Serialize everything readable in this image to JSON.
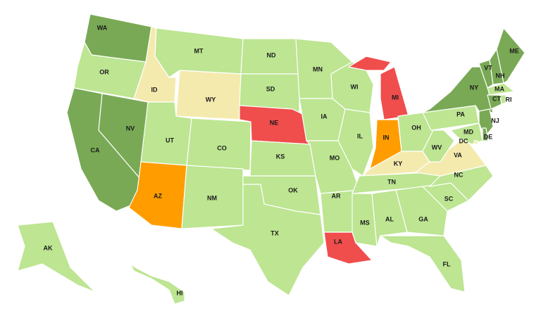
{
  "map": {
    "states": [
      {
        "code": "WA",
        "color": "#79a955"
      },
      {
        "code": "OR",
        "color": "#bde592"
      },
      {
        "code": "CA",
        "color": "#79a955"
      },
      {
        "code": "NV",
        "color": "#79a955"
      },
      {
        "code": "ID",
        "color": "#f5eaae"
      },
      {
        "code": "MT",
        "color": "#bde592"
      },
      {
        "code": "WY",
        "color": "#f5eaae"
      },
      {
        "code": "UT",
        "color": "#bde592"
      },
      {
        "code": "AZ",
        "color": "#ff9d00"
      },
      {
        "code": "CO",
        "color": "#bde592"
      },
      {
        "code": "NM",
        "color": "#bde592"
      },
      {
        "code": "ND",
        "color": "#bde592"
      },
      {
        "code": "SD",
        "color": "#bde592"
      },
      {
        "code": "NE",
        "color": "#f04d4d"
      },
      {
        "code": "KS",
        "color": "#bde592"
      },
      {
        "code": "OK",
        "color": "#bde592"
      },
      {
        "code": "TX",
        "color": "#bde592"
      },
      {
        "code": "MN",
        "color": "#bde592"
      },
      {
        "code": "IA",
        "color": "#bde592"
      },
      {
        "code": "WI",
        "color": "#bde592"
      },
      {
        "code": "MO",
        "color": "#bde592"
      },
      {
        "code": "AR",
        "color": "#bde592"
      },
      {
        "code": "LA",
        "color": "#f04d4d"
      },
      {
        "code": "IL",
        "color": "#bde592"
      },
      {
        "code": "MI",
        "color": "#f04d4d"
      },
      {
        "code": "IN",
        "color": "#ff9d00"
      },
      {
        "code": "OH",
        "color": "#bde592"
      },
      {
        "code": "KY",
        "color": "#f5eaae"
      },
      {
        "code": "TN",
        "color": "#bde592"
      },
      {
        "code": "MS",
        "color": "#bde592"
      },
      {
        "code": "AL",
        "color": "#bde592"
      },
      {
        "code": "GA",
        "color": "#bde592"
      },
      {
        "code": "FL",
        "color": "#bde592"
      },
      {
        "code": "SC",
        "color": "#bde592"
      },
      {
        "code": "NC",
        "color": "#bde592"
      },
      {
        "code": "VA",
        "color": "#f5eaae"
      },
      {
        "code": "WV",
        "color": "#bde592"
      },
      {
        "code": "PA",
        "color": "#bde592"
      },
      {
        "code": "NY",
        "color": "#79a955"
      },
      {
        "code": "VT",
        "color": "#79a955"
      },
      {
        "code": "NH",
        "color": "#79a955"
      },
      {
        "code": "ME",
        "color": "#79a955"
      },
      {
        "code": "MA",
        "color": "#bde592"
      },
      {
        "code": "CT",
        "color": "#79a955"
      },
      {
        "code": "RI",
        "color": "#bde592"
      },
      {
        "code": "NJ",
        "color": "#79a955"
      },
      {
        "code": "DE",
        "color": "#79a955"
      },
      {
        "code": "MD",
        "color": "#bde592"
      },
      {
        "code": "DC",
        "color": "#f5eaae"
      },
      {
        "code": "AK",
        "color": "#bde592"
      },
      {
        "code": "HI",
        "color": "#bde592"
      }
    ]
  }
}
